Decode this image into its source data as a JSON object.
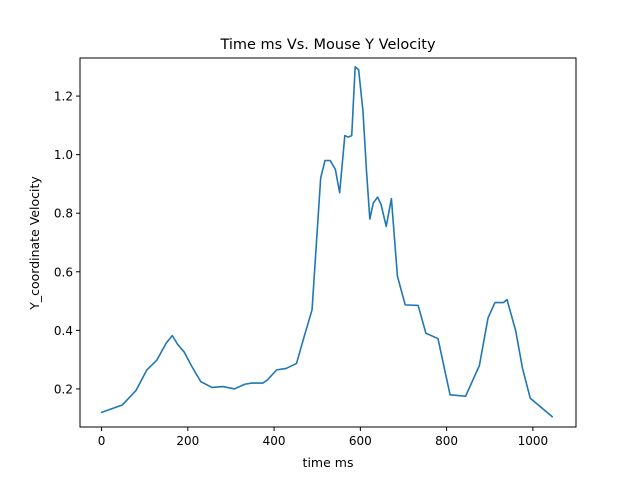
{
  "chart_data": {
    "type": "line",
    "title": "Time ms Vs. Mouse Y Velocity",
    "xlabel": "time ms",
    "ylabel": "Y_coordinate Velocity",
    "xlim": [
      -50,
      1100
    ],
    "ylim": [
      0.07,
      1.33
    ],
    "xticks": [
      0,
      200,
      400,
      600,
      800,
      1000
    ],
    "yticks": [
      0.2,
      0.4,
      0.6,
      0.8,
      1.0,
      1.2
    ],
    "xtick_labels": [
      "0",
      "200",
      "400",
      "600",
      "800",
      "1000"
    ],
    "ytick_labels": [
      "0.2",
      "0.4",
      "0.6",
      "0.8",
      "1.0",
      "1.2"
    ],
    "grid": false,
    "series": [
      {
        "color": "#1f77b4",
        "x": [
          0,
          48,
          80,
          105,
          128,
          150,
          164,
          176,
          192,
          208,
          230,
          256,
          282,
          308,
          332,
          348,
          374,
          384,
          406,
          428,
          452,
          470,
          488,
          500,
          508,
          518,
          530,
          542,
          552,
          564,
          572,
          580,
          588,
          596,
          606,
          614,
          622,
          630,
          640,
          648,
          660,
          672,
          686,
          704,
          734,
          752,
          780,
          808,
          844,
          876,
          896,
          912,
          932,
          940,
          960,
          976,
          994,
          1045
        ],
        "y": [
          0.12,
          0.145,
          0.195,
          0.265,
          0.298,
          0.357,
          0.382,
          0.353,
          0.325,
          0.28,
          0.225,
          0.205,
          0.208,
          0.2,
          0.216,
          0.22,
          0.22,
          0.23,
          0.265,
          0.27,
          0.287,
          0.38,
          0.47,
          0.74,
          0.92,
          0.98,
          0.98,
          0.95,
          0.87,
          1.065,
          1.06,
          1.065,
          1.3,
          1.29,
          1.15,
          0.95,
          0.78,
          0.835,
          0.855,
          0.83,
          0.755,
          0.85,
          0.585,
          0.487,
          0.485,
          0.39,
          0.372,
          0.18,
          0.175,
          0.28,
          0.442,
          0.495,
          0.495,
          0.505,
          0.4,
          0.27,
          0.168,
          0.105
        ]
      }
    ]
  }
}
